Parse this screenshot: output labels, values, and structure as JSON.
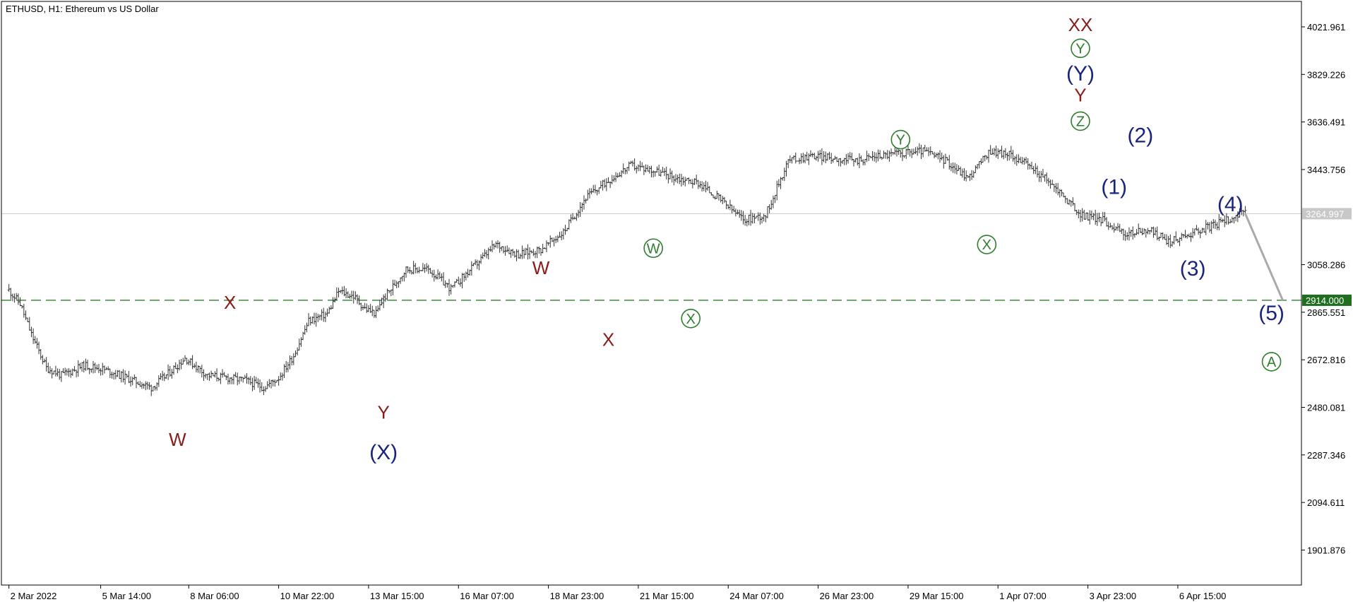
{
  "chart_data": {
    "type": "line",
    "title": "ETHUSD, H1:  Ethereum vs US Dollar",
    "symbol": "ETHUSD",
    "timeframe": "H1",
    "description": "Ethereum vs US Dollar",
    "style": "bars",
    "ylim": [
      1760,
      4125
    ],
    "grid": false,
    "y_ticks": [
      "4021.961",
      "3829.226",
      "3636.491",
      "3443.756",
      "3058.286",
      "2865.551",
      "2672.816",
      "2480.081",
      "2287.346",
      "2094.611",
      "1901.876"
    ],
    "y_tick_values": [
      4021.961,
      3829.226,
      3636.491,
      3443.756,
      3058.286,
      2865.551,
      2672.816,
      2480.081,
      2287.346,
      2094.611,
      1901.876
    ],
    "x_ticks": [
      "2 Mar 2022",
      "5 Mar 14:00",
      "8 Mar 06:00",
      "10 Mar 22:00",
      "13 Mar 15:00",
      "16 Mar 07:00",
      "18 Mar 23:00",
      "21 Mar 15:00",
      "24 Mar 07:00",
      "26 Mar 23:00",
      "29 Mar 15:00",
      "1 Apr 07:00",
      "3 Apr 23:00",
      "6 Apr 15:00"
    ],
    "current_price": {
      "label": "3264.997",
      "value": 3264.997,
      "color": "#c0c0c0"
    },
    "target_level": {
      "label": "2914.000",
      "value": 2914.0,
      "color": "#2e7d2e"
    },
    "series": [
      {
        "name": "",
        "x": [
          0,
          3,
          6,
          10,
          14,
          20,
          24,
          28,
          33,
          38,
          42,
          47,
          53,
          58,
          63,
          68,
          72,
          76,
          80,
          85,
          88,
          92,
          95,
          98,
          100
        ],
        "y": [
          2955,
          2900,
          2775,
          2640,
          2610,
          2650,
          2640,
          2620,
          2590,
          2560,
          2610,
          2680,
          2610,
          2600,
          2590,
          2560,
          2600,
          2690,
          2830,
          2860,
          2950,
          2930,
          2880,
          2860,
          2920
        ]
      },
      {
        "name": "",
        "x": [
          100,
          106,
          112,
          118,
          124,
          130,
          136,
          142,
          148,
          154,
          160,
          166,
          172,
          178,
          184,
          190,
          196,
          202,
          208,
          214,
          220,
          226,
          232,
          238,
          244,
          250,
          256,
          262,
          268,
          274,
          280,
          286,
          292,
          298,
          304,
          310,
          316,
          322,
          325,
          328,
          330
        ],
        "y": [
          2920,
          3040,
          3040,
          2960,
          3050,
          3140,
          3100,
          3120,
          3190,
          3330,
          3400,
          3460,
          3440,
          3410,
          3390,
          3320,
          3240,
          3260,
          3480,
          3500,
          3490,
          3480,
          3500,
          3510,
          3520,
          3480,
          3410,
          3520,
          3500,
          3440,
          3360,
          3260,
          3240,
          3180,
          3200,
          3150,
          3190,
          3220,
          3240,
          3260,
          3265
        ]
      },
      {
        "name": "",
        "x": [
          330,
          340
        ],
        "y": [
          3265,
          2914
        ],
        "color": "#aaaaaa"
      }
    ],
    "x_tick_positions": [
      0,
      24.5,
      48,
      72,
      96,
      120,
      144,
      168,
      192,
      216,
      240,
      264,
      288,
      312
    ],
    "annotations": [
      {
        "text": "W",
        "x": 45,
        "y": 2350,
        "color": "#8b1a1a",
        "circle": false
      },
      {
        "text": "X",
        "x": 59,
        "y": 2905,
        "color": "#8b1a1a",
        "circle": false
      },
      {
        "text": "Y",
        "x": 100,
        "y": 2460,
        "color": "#8b1a1a",
        "circle": false
      },
      {
        "text": "(X)",
        "x": 100,
        "y": 2295,
        "color": "#1a237e",
        "circle": false
      },
      {
        "text": "W",
        "x": 142,
        "y": 3045,
        "color": "#8b1a1a",
        "circle": false
      },
      {
        "text": "X",
        "x": 160,
        "y": 2755,
        "color": "#8b1a1a",
        "circle": false
      },
      {
        "text": "W",
        "x": 172,
        "y": 3125,
        "color": "#2e7d2e",
        "circle": true
      },
      {
        "text": "X",
        "x": 182,
        "y": 2840,
        "color": "#2e7d2e",
        "circle": true
      },
      {
        "text": "Y",
        "x": 238,
        "y": 3565,
        "color": "#2e7d2e",
        "circle": true
      },
      {
        "text": "X",
        "x": 261,
        "y": 3140,
        "color": "#2e7d2e",
        "circle": true
      },
      {
        "text": "Z",
        "x": 286,
        "y": 3640,
        "color": "#2e7d2e",
        "circle": true
      },
      {
        "text": "Y",
        "x": 286,
        "y": 3745,
        "color": "#8b1a1a",
        "circle": false
      },
      {
        "text": "(Y)",
        "x": 286,
        "y": 3830,
        "color": "#1a237e",
        "circle": false
      },
      {
        "text": "Y",
        "x": 286,
        "y": 3935,
        "color": "#2e7d2e",
        "circle": true
      },
      {
        "text": "XX",
        "x": 286,
        "y": 4030,
        "color": "#8b1a1a",
        "circle": false
      },
      {
        "text": "(1)",
        "x": 295,
        "y": 3370,
        "color": "#1a237e",
        "circle": false
      },
      {
        "text": "(2)",
        "x": 302,
        "y": 3580,
        "color": "#1a237e",
        "circle": false
      },
      {
        "text": "(3)",
        "x": 316,
        "y": 3040,
        "color": "#1a237e",
        "circle": false
      },
      {
        "text": "(4)",
        "x": 326,
        "y": 3300,
        "color": "#1a237e",
        "circle": false
      },
      {
        "text": "(5)",
        "x": 337,
        "y": 2860,
        "color": "#1a237e",
        "circle": false
      },
      {
        "text": "A",
        "x": 337,
        "y": 2665,
        "color": "#2e7d2e",
        "circle": true
      }
    ]
  }
}
